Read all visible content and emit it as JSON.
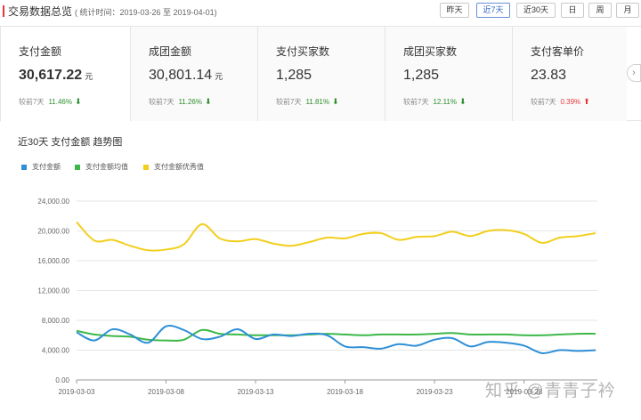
{
  "header": {
    "title": "交易数据总览",
    "subtitle": "( 统计时间：2019-03-26 至 2019-04-01)"
  },
  "range_buttons": [
    {
      "label": "昨天",
      "active": false
    },
    {
      "label": "近7天",
      "active": true
    },
    {
      "label": "近30天",
      "active": false
    },
    {
      "label": "日",
      "active": false
    },
    {
      "label": "周",
      "active": false
    },
    {
      "label": "月",
      "active": false
    }
  ],
  "cards": [
    {
      "label": "支付金额",
      "value": "30,617.22",
      "unit": "元",
      "compare_label": "较前7天",
      "pct": "11.46%",
      "direction": "down"
    },
    {
      "label": "成团金额",
      "value": "30,801.14",
      "unit": "元",
      "compare_label": "较前7天",
      "pct": "11.26%",
      "direction": "down"
    },
    {
      "label": "支付买家数",
      "value": "1,285",
      "unit": "",
      "compare_label": "较前7天",
      "pct": "11.81%",
      "direction": "down"
    },
    {
      "label": "成团买家数",
      "value": "1,285",
      "unit": "",
      "compare_label": "较前7天",
      "pct": "12.11%",
      "direction": "down"
    },
    {
      "label": "支付客单价",
      "value": "23.83",
      "unit": "",
      "compare_label": "较前7天",
      "pct": "0.39%",
      "direction": "up"
    }
  ],
  "icons": {
    "next": "chevron-right-icon",
    "arrow_down": "arrow-down-icon",
    "arrow_up": "arrow-up-icon"
  },
  "colors": {
    "series_blue": "#2f8fd6",
    "series_green": "#3cb84a",
    "series_yellow": "#f2cf1c",
    "down": "#2d8f2d",
    "up": "#e4393c",
    "accent": "#e4393c"
  },
  "chart": {
    "title": "近30天 支付金额 趋势图"
  },
  "chart_data": {
    "type": "line",
    "title": "近30天 支付金额 趋势图",
    "xlabel": "",
    "ylabel": "",
    "ylim": [
      0,
      24000
    ],
    "y_ticks": [
      "0.00",
      "4,000.00",
      "8,000.00",
      "12,000.00",
      "16,000.00",
      "20,000.00",
      "24,000.00"
    ],
    "x_tick_labels": [
      "2019-03-03",
      "2019-03-08",
      "2019-03-13",
      "2019-03-18",
      "2019-03-23",
      "2019-03-28"
    ],
    "x": [
      "2019-03-03",
      "2019-03-04",
      "2019-03-05",
      "2019-03-06",
      "2019-03-07",
      "2019-03-08",
      "2019-03-09",
      "2019-03-10",
      "2019-03-11",
      "2019-03-12",
      "2019-03-13",
      "2019-03-14",
      "2019-03-15",
      "2019-03-16",
      "2019-03-17",
      "2019-03-18",
      "2019-03-19",
      "2019-03-20",
      "2019-03-21",
      "2019-03-22",
      "2019-03-23",
      "2019-03-24",
      "2019-03-25",
      "2019-03-26",
      "2019-03-27",
      "2019-03-28",
      "2019-03-29",
      "2019-03-30",
      "2019-03-31",
      "2019-04-01"
    ],
    "grid": true,
    "legend_position": "top-left",
    "series": [
      {
        "name": "支付金额",
        "color": "#2f8fd6",
        "values": [
          6400,
          5300,
          6800,
          6100,
          5000,
          7200,
          6700,
          5500,
          5800,
          6800,
          5500,
          6100,
          5900,
          6200,
          6000,
          4500,
          4400,
          4200,
          4800,
          4600,
          5400,
          5600,
          4500,
          5100,
          5000,
          4600,
          3600,
          4000,
          3900,
          4000
        ]
      },
      {
        "name": "支付金额均值",
        "color": "#3cb84a",
        "values": [
          6600,
          6100,
          5900,
          5800,
          5400,
          5300,
          5400,
          6700,
          6200,
          6100,
          6000,
          6000,
          6000,
          6100,
          6200,
          6100,
          6000,
          6100,
          6100,
          6100,
          6200,
          6300,
          6100,
          6100,
          6100,
          6000,
          6000,
          6100,
          6200,
          6200
        ]
      },
      {
        "name": "支付金额优秀值",
        "color": "#f2cf1c",
        "values": [
          21200,
          18700,
          18800,
          18000,
          17400,
          17500,
          18200,
          20900,
          19000,
          18600,
          18900,
          18300,
          18000,
          18500,
          19100,
          19000,
          19600,
          19700,
          18800,
          19200,
          19300,
          19900,
          19300,
          20000,
          20100,
          19600,
          18400,
          19100,
          19300,
          19700
        ]
      }
    ]
  },
  "watermark": "知乎 @青青子衿"
}
